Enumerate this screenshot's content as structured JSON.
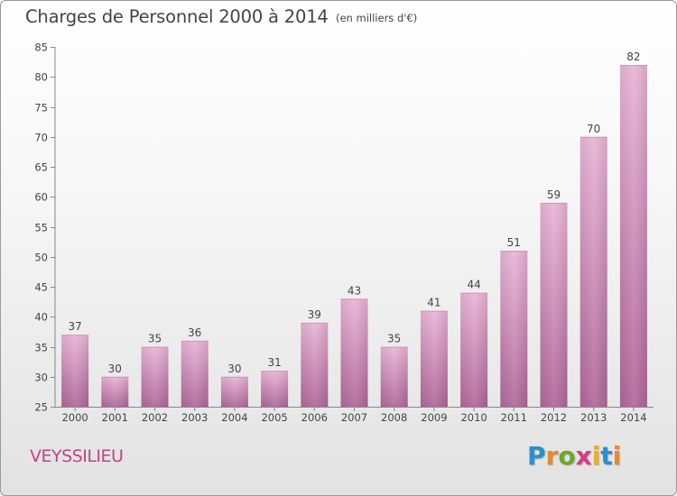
{
  "header": {
    "title": "Charges de Personnel 2000 à 2014",
    "subtitle": "(en milliers d'€)"
  },
  "commune_name": "VEYSSILIEU",
  "brand": {
    "letters": [
      "P",
      "r",
      "o",
      "x",
      "i",
      "t",
      "i"
    ],
    "colors": [
      "#2a8fd0",
      "#e8892a",
      "#6aaa2a",
      "#d63a8a",
      "#e8b02a",
      "#2a8fd0",
      "#e8892a"
    ]
  },
  "colors": {
    "bar_light": "#eab5d6",
    "bar_dark": "#b0689a",
    "axis": "#888888",
    "text": "#444444"
  },
  "chart_data": {
    "type": "bar",
    "title": "Charges de Personnel 2000 à 2014",
    "subtitle": "(en milliers d'€)",
    "categories": [
      "2000",
      "2001",
      "2002",
      "2003",
      "2004",
      "2005",
      "2006",
      "2007",
      "2008",
      "2009",
      "2010",
      "2011",
      "2012",
      "2013",
      "2014"
    ],
    "values": [
      37,
      30,
      35,
      36,
      30,
      31,
      39,
      43,
      35,
      41,
      44,
      51,
      59,
      70,
      82
    ],
    "ylim": [
      25,
      85
    ],
    "yticks": [
      25,
      30,
      35,
      40,
      45,
      50,
      55,
      60,
      65,
      70,
      75,
      80,
      85
    ],
    "grid": false,
    "xlabel": "",
    "ylabel": ""
  }
}
